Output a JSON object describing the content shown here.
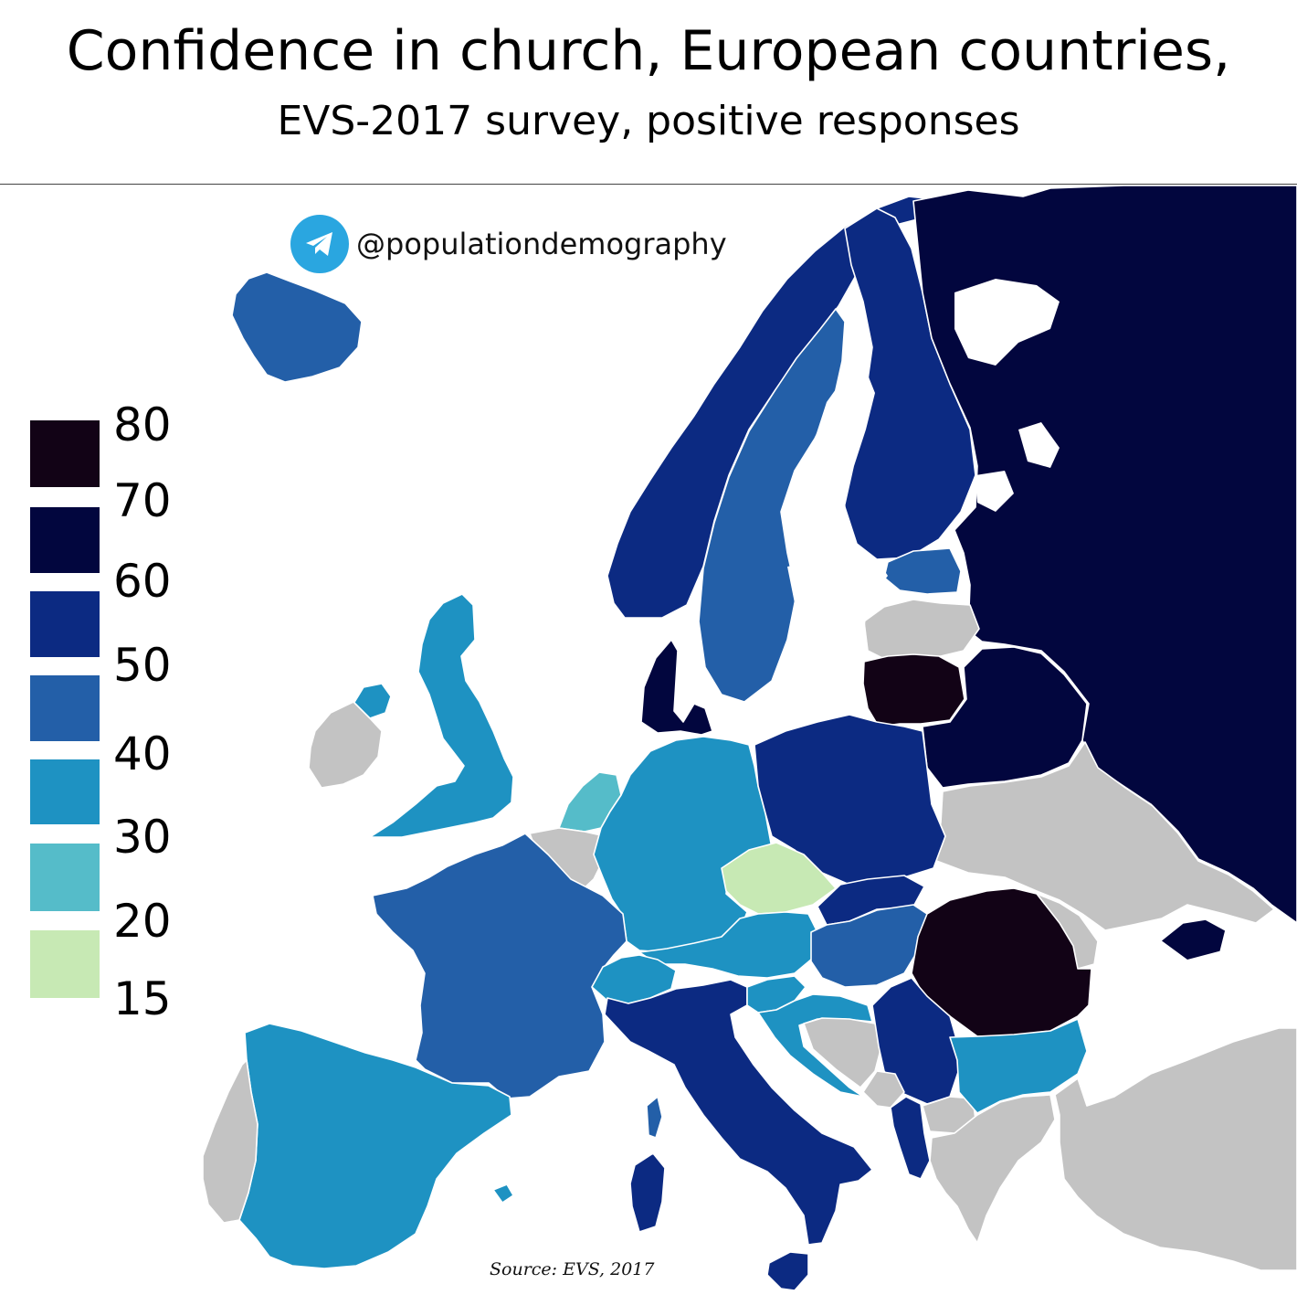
{
  "title": "Confidence in church, European countries,",
  "subtitle": "EVS-2017 survey, positive responses",
  "credit": {
    "icon": "telegram-icon",
    "handle": "@populationdemography"
  },
  "source": "Source: EVS, 2017",
  "legend": {
    "ticks": [
      "80",
      "70",
      "60",
      "50",
      "40",
      "30",
      "20",
      "15"
    ],
    "bins": [
      {
        "range": "70–80",
        "color": "#120316"
      },
      {
        "range": "60–70",
        "color": "#02063e"
      },
      {
        "range": "50–60",
        "color": "#0c2a82"
      },
      {
        "range": "40–50",
        "color": "#235fa8"
      },
      {
        "range": "30–40",
        "color": "#1e92c2"
      },
      {
        "range": "20–30",
        "color": "#55bcc9"
      },
      {
        "range": "15–20",
        "color": "#c7e9b4"
      }
    ],
    "no_data_color": "#c3c3c3",
    "water_color": "#ffffff"
  },
  "chart_data": {
    "type": "choropleth",
    "title": "Confidence in church, European countries,",
    "subtitle": "EVS-2017 survey, positive responses",
    "unit": "%",
    "countries": [
      {
        "name": "Iceland",
        "bin": "40–50"
      },
      {
        "name": "Norway",
        "bin": "50–60"
      },
      {
        "name": "Sweden",
        "bin": "40–50"
      },
      {
        "name": "Finland",
        "bin": "50–60"
      },
      {
        "name": "Russia",
        "bin": "60–70"
      },
      {
        "name": "Estonia",
        "bin": "40–50"
      },
      {
        "name": "Latvia",
        "bin": "no data"
      },
      {
        "name": "Lithuania",
        "bin": "70–80"
      },
      {
        "name": "Belarus",
        "bin": "60–70"
      },
      {
        "name": "Ukraine",
        "bin": "no data"
      },
      {
        "name": "Crimea",
        "bin": "60–70"
      },
      {
        "name": "Denmark",
        "bin": "60–70"
      },
      {
        "name": "United Kingdom",
        "bin": "30–40"
      },
      {
        "name": "Northern Ireland",
        "bin": "30–40"
      },
      {
        "name": "Ireland",
        "bin": "no data"
      },
      {
        "name": "Netherlands",
        "bin": "20–30"
      },
      {
        "name": "Belgium",
        "bin": "no data"
      },
      {
        "name": "Germany",
        "bin": "30–40"
      },
      {
        "name": "Poland",
        "bin": "50–60"
      },
      {
        "name": "Czechia",
        "bin": "15–20"
      },
      {
        "name": "Slovakia",
        "bin": "50–60"
      },
      {
        "name": "Austria",
        "bin": "30–40"
      },
      {
        "name": "Hungary",
        "bin": "40–50"
      },
      {
        "name": "Romania",
        "bin": "70–80"
      },
      {
        "name": "Moldova",
        "bin": "no data"
      },
      {
        "name": "France",
        "bin": "40–50"
      },
      {
        "name": "Switzerland",
        "bin": "30–40"
      },
      {
        "name": "Slovenia",
        "bin": "30–40"
      },
      {
        "name": "Croatia",
        "bin": "30–40"
      },
      {
        "name": "Bosnia and Herzegovina",
        "bin": "no data"
      },
      {
        "name": "Serbia",
        "bin": "50–60"
      },
      {
        "name": "Montenegro",
        "bin": "no data"
      },
      {
        "name": "Albania",
        "bin": "50–60"
      },
      {
        "name": "North Macedonia",
        "bin": "no data"
      },
      {
        "name": "Bulgaria",
        "bin": "30–40"
      },
      {
        "name": "Greece",
        "bin": "no data"
      },
      {
        "name": "Turkey",
        "bin": "no data"
      },
      {
        "name": "Italy",
        "bin": "50–60"
      },
      {
        "name": "Spain",
        "bin": "30–40"
      },
      {
        "name": "Portugal",
        "bin": "no data"
      }
    ]
  }
}
